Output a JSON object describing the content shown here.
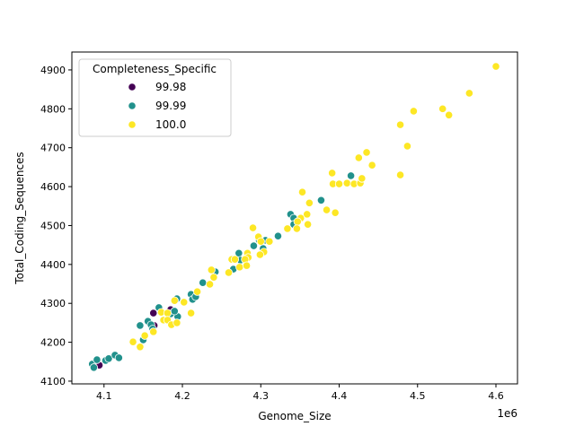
{
  "chart_data": {
    "type": "scatter",
    "title": "",
    "xlabel": "Genome_Size",
    "ylabel": "Total_Coding_Sequences",
    "x_offset_label": "1e6",
    "xlim": [
      4.059,
      4.6275
    ],
    "ylim": [
      4093,
      4946
    ],
    "xticks": [
      4.1,
      4.2,
      4.3,
      4.4,
      4.5,
      4.6
    ],
    "xtick_labels": [
      "4.1",
      "4.2",
      "4.3",
      "4.4",
      "4.5",
      "4.6"
    ],
    "yticks": [
      4100,
      4200,
      4300,
      4400,
      4500,
      4600,
      4700,
      4800,
      4900
    ],
    "ytick_labels": [
      "4100",
      "4200",
      "4300",
      "4400",
      "4500",
      "4600",
      "4700",
      "4800",
      "4900"
    ],
    "grid": false,
    "legend": {
      "title": "Completeness_Specific",
      "placement": "upper-left"
    },
    "series": [
      {
        "name": "99.98",
        "color": "#440154",
        "x": [
          4.163,
          4.164,
          4.185,
          4.094
        ],
        "y": [
          4275,
          4243,
          4284,
          4141
        ]
      },
      {
        "name": "99.99",
        "color": "#21918c",
        "x": [
          4.085,
          4.091,
          4.087,
          4.102,
          4.106,
          4.114,
          4.119,
          4.146,
          4.156,
          4.17,
          4.16,
          4.162,
          4.15,
          4.185,
          4.194,
          4.19,
          4.211,
          4.213,
          4.217,
          4.193,
          4.226,
          4.242,
          4.265,
          4.272,
          4.274,
          4.291,
          4.298,
          4.306,
          4.303,
          4.322,
          4.338,
          4.342,
          4.342,
          4.377,
          4.415
        ],
        "y": [
          4144,
          4155,
          4135,
          4153,
          4158,
          4167,
          4160,
          4243,
          4254,
          4289,
          4245,
          4234,
          4206,
          4273,
          4266,
          4280,
          4323,
          4310,
          4317,
          4312,
          4353,
          4381,
          4388,
          4429,
          4411,
          4448,
          4462,
          4462,
          4441,
          4473,
          4529,
          4519,
          4503,
          4565,
          4628
        ]
      },
      {
        "name": "100.0",
        "color": "#fde725",
        "x": [
          4.6,
          4.566,
          4.495,
          4.532,
          4.54,
          4.478,
          4.487,
          4.478,
          4.425,
          4.435,
          4.442,
          4.391,
          4.392,
          4.4,
          4.41,
          4.419,
          4.427,
          4.429,
          4.353,
          4.362,
          4.384,
          4.395,
          4.359,
          4.351,
          4.347,
          4.36,
          4.334,
          4.346,
          4.29,
          4.297,
          4.3,
          4.311,
          4.304,
          4.299,
          4.283,
          4.284,
          4.263,
          4.267,
          4.28,
          4.273,
          4.282,
          4.237,
          4.259,
          4.24,
          4.235,
          4.19,
          4.202,
          4.211,
          4.173,
          4.181,
          4.176,
          4.181,
          4.186,
          4.193,
          4.163,
          4.152,
          4.137,
          4.146,
          4.219
        ],
        "y": [
          4909,
          4840,
          4794,
          4800,
          4784,
          4759,
          4704,
          4630,
          4674,
          4688,
          4655,
          4635,
          4607,
          4607,
          4609,
          4607,
          4609,
          4621,
          4586,
          4558,
          4540,
          4533,
          4529,
          4519,
          4510,
          4503,
          4492,
          4492,
          4494,
          4471,
          4459,
          4459,
          4432,
          4425,
          4429,
          4418,
          4413,
          4413,
          4413,
          4393,
          4397,
          4386,
          4379,
          4367,
          4349,
          4307,
          4303,
          4275,
          4277,
          4275,
          4257,
          4257,
          4245,
          4250,
          4227,
          4217,
          4201,
          4188,
          4330
        ]
      }
    ]
  }
}
